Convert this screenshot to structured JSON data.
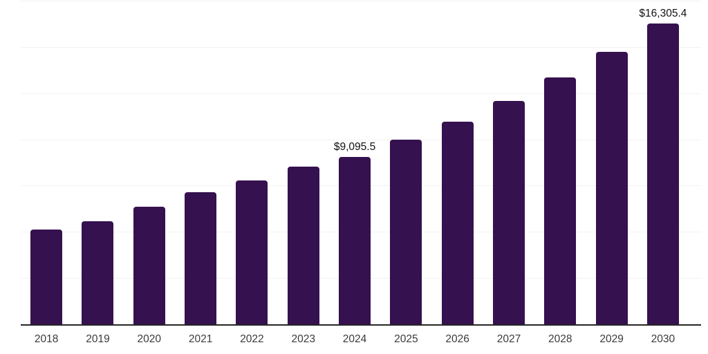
{
  "chart_data": {
    "type": "bar",
    "title": "",
    "xlabel": "",
    "ylabel": "",
    "categories": [
      "2018",
      "2019",
      "2020",
      "2021",
      "2022",
      "2023",
      "2024",
      "2025",
      "2026",
      "2027",
      "2028",
      "2029",
      "2030"
    ],
    "values": [
      5160,
      5610,
      6400,
      7180,
      7815,
      8565,
      9095.5,
      10020,
      11000,
      12115,
      13385,
      14770,
      16305.4
    ],
    "value_labels": {
      "2024": "$9,095.5",
      "2030": "$16,305.4"
    },
    "ylim": [
      0,
      17500
    ],
    "gridline_step": 2500,
    "grid": "horizontal",
    "legend": "none",
    "colors": {
      "bar": "#35114F",
      "axis": "#262626",
      "gridline": "#f2f2f2",
      "tick_label": "#3a3a3a",
      "value_label": "#111111",
      "background": "#ffffff"
    }
  }
}
